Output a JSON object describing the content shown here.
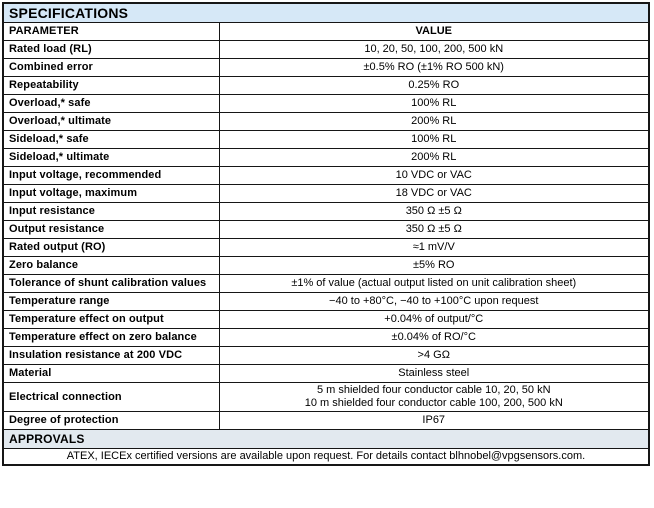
{
  "title": "SPECIFICATIONS",
  "columns": {
    "parameter": "PARAMETER",
    "value": "VALUE"
  },
  "rows": [
    {
      "param": "Rated load (RL)",
      "value": "10, 20, 50, 100, 200, 500 kN"
    },
    {
      "param": "Combined error",
      "value": "±0.5% RO (±1% RO 500 kN)"
    },
    {
      "param": "Repeatability",
      "value": "0.25% RO"
    },
    {
      "param": "Overload,* safe",
      "value": "100% RL"
    },
    {
      "param": "Overload,* ultimate",
      "value": "200% RL"
    },
    {
      "param": "Sideload,* safe",
      "value": "100% RL"
    },
    {
      "param": "Sideload,* ultimate",
      "value": "200% RL"
    },
    {
      "param": "Input voltage, recommended",
      "value": "10 VDC or VAC"
    },
    {
      "param": "Input voltage, maximum",
      "value": "18 VDC or VAC"
    },
    {
      "param": "Input resistance",
      "value": "350 Ω ±5 Ω"
    },
    {
      "param": "Output resistance",
      "value": "350 Ω ±5 Ω"
    },
    {
      "param": "Rated output (RO)",
      "value": "≈1 mV/V"
    },
    {
      "param": "Zero balance",
      "value": "±5% RO"
    },
    {
      "param": "Tolerance of shunt calibration values",
      "value": "±1% of value (actual output listed on unit calibration sheet)"
    },
    {
      "param": "Temperature range",
      "value": "−40 to +80°C, −40 to +100°C upon request"
    },
    {
      "param": "Temperature effect on output",
      "value": "+0.04% of output/°C"
    },
    {
      "param": "Temperature effect on zero balance",
      "value": "±0.04% of RO/°C"
    },
    {
      "param": "Insulation resistance at 200 VDC",
      "value": ">4 GΩ"
    },
    {
      "param": "Material",
      "value": "Stainless steel"
    },
    {
      "param": "Electrical connection",
      "value": "5 m shielded four conductor cable 10, 20, 50 kN\n10 m shielded four conductor cable 100, 200, 500 kN"
    },
    {
      "param": "Degree of protection",
      "value": "IP67"
    }
  ],
  "approvals": {
    "title": "APPROVALS",
    "note": "ATEX, IECEx certified versions are available upon request. For details contact blhnobel@vpgsensors.com."
  },
  "colors": {
    "header_bg": "#d6e8f7",
    "approvals_bg": "#e2e9ef",
    "border": "#161616",
    "text": "#000000"
  }
}
